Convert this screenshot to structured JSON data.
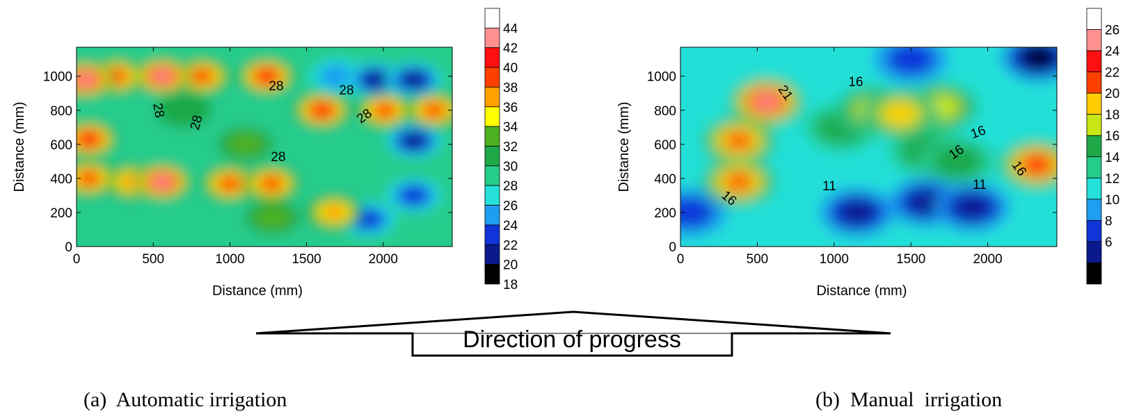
{
  "panels": [
    {
      "caption": "(a)  Automatic irrigation",
      "xlabel": "Distance (mm)",
      "ylabel": "Distance (mm)",
      "xticks": [
        "0",
        "500",
        "1000",
        "1500",
        "2000"
      ],
      "yticks": [
        "0",
        "200",
        "400",
        "600",
        "800",
        "1000"
      ],
      "colorbar_labels": [
        "44",
        "42",
        "40",
        "38",
        "36",
        "34",
        "32",
        "30",
        "28",
        "26",
        "24",
        "22",
        "20",
        "18"
      ],
      "contour_labels": [
        "28",
        "28",
        "28",
        "28",
        "28",
        "28"
      ]
    },
    {
      "caption": "(b)  Manual  irrigation",
      "xlabel": "Distance (mm)",
      "ylabel": "Distance (mm)",
      "xticks": [
        "0",
        "500",
        "1000",
        "1500",
        "2000"
      ],
      "yticks": [
        "0",
        "200",
        "400",
        "600",
        "800",
        "1000"
      ],
      "colorbar_labels": [
        "26",
        "24",
        "22",
        "20",
        "18",
        "16",
        "14",
        "12",
        "10",
        "8",
        "6"
      ],
      "contour_labels": [
        "21",
        "16",
        "16",
        "16",
        "16",
        "16",
        "11",
        "11"
      ]
    }
  ],
  "arrow": {
    "label": "Direction of progress"
  },
  "chart_data": [
    {
      "type": "heatmap",
      "title": "",
      "xlabel": "Distance (mm)",
      "ylabel": "Distance (mm)",
      "xlim": [
        0,
        2450
      ],
      "ylim": [
        0,
        1170
      ],
      "colorbar_levels": [
        18,
        20,
        22,
        24,
        26,
        28,
        30,
        32,
        34,
        36,
        38,
        40,
        42,
        44
      ],
      "colorscale": [
        "#000000",
        "#0a1a8c",
        "#1034d8",
        "#1e9ef0",
        "#24e0d8",
        "#26cc8c",
        "#1ea848",
        "#4cb020",
        "#ffff00",
        "#ffa000",
        "#ff4000",
        "#ff1010",
        "#ff9090",
        "#ffffff"
      ],
      "background_level": 27,
      "features": [
        {
          "x": 60,
          "y": 980,
          "value": 40
        },
        {
          "x": 260,
          "y": 1000,
          "value": 36
        },
        {
          "x": 560,
          "y": 1000,
          "value": 40
        },
        {
          "x": 820,
          "y": 1000,
          "value": 36
        },
        {
          "x": 1240,
          "y": 1000,
          "value": 38
        },
        {
          "x": 1600,
          "y": 800,
          "value": 38
        },
        {
          "x": 2010,
          "y": 800,
          "value": 36
        },
        {
          "x": 2330,
          "y": 800,
          "value": 37
        },
        {
          "x": 80,
          "y": 630,
          "value": 38
        },
        {
          "x": 80,
          "y": 400,
          "value": 36
        },
        {
          "x": 360,
          "y": 380,
          "value": 35
        },
        {
          "x": 560,
          "y": 380,
          "value": 40
        },
        {
          "x": 1000,
          "y": 370,
          "value": 36
        },
        {
          "x": 1270,
          "y": 370,
          "value": 36
        },
        {
          "x": 1680,
          "y": 200,
          "value": 34
        },
        {
          "x": 1280,
          "y": 170,
          "value": 30
        },
        {
          "x": 700,
          "y": 800,
          "value": 29
        },
        {
          "x": 1100,
          "y": 600,
          "value": 30
        },
        {
          "x": 1950,
          "y": 980,
          "value": 20
        },
        {
          "x": 2200,
          "y": 980,
          "value": 20
        },
        {
          "x": 2200,
          "y": 620,
          "value": 20
        },
        {
          "x": 2200,
          "y": 300,
          "value": 21
        },
        {
          "x": 1900,
          "y": 160,
          "value": 22
        },
        {
          "x": 1700,
          "y": 1000,
          "value": 24
        }
      ]
    },
    {
      "type": "heatmap",
      "title": "",
      "xlabel": "Distance (mm)",
      "ylabel": "Distance (mm)",
      "xlim": [
        0,
        2450
      ],
      "ylim": [
        0,
        1170
      ],
      "colorbar_levels": [
        6,
        8,
        10,
        12,
        14,
        16,
        18,
        20,
        22,
        24,
        26
      ],
      "colorscale": [
        "#000000",
        "#0a1a8c",
        "#1034d8",
        "#1e9ef0",
        "#24e0d8",
        "#26cc8c",
        "#1ea848",
        "#c8e614",
        "#ffcc00",
        "#ff4000",
        "#ff1010",
        "#ff9090",
        "#ffffff"
      ],
      "background_level": 13,
      "features": [
        {
          "x": 560,
          "y": 850,
          "value": 27
        },
        {
          "x": 380,
          "y": 620,
          "value": 22
        },
        {
          "x": 380,
          "y": 380,
          "value": 22
        },
        {
          "x": 2320,
          "y": 480,
          "value": 24
        },
        {
          "x": 1430,
          "y": 780,
          "value": 21
        },
        {
          "x": 1250,
          "y": 800,
          "value": 18
        },
        {
          "x": 1700,
          "y": 820,
          "value": 18
        },
        {
          "x": 1050,
          "y": 700,
          "value": 16
        },
        {
          "x": 1600,
          "y": 560,
          "value": 16
        },
        {
          "x": 1800,
          "y": 500,
          "value": 17
        },
        {
          "x": 1150,
          "y": 200,
          "value": 7
        },
        {
          "x": 1600,
          "y": 260,
          "value": 8
        },
        {
          "x": 1900,
          "y": 230,
          "value": 7
        },
        {
          "x": 2330,
          "y": 1110,
          "value": 6
        },
        {
          "x": 1500,
          "y": 1100,
          "value": 10
        },
        {
          "x": 60,
          "y": 200,
          "value": 10
        }
      ]
    }
  ]
}
